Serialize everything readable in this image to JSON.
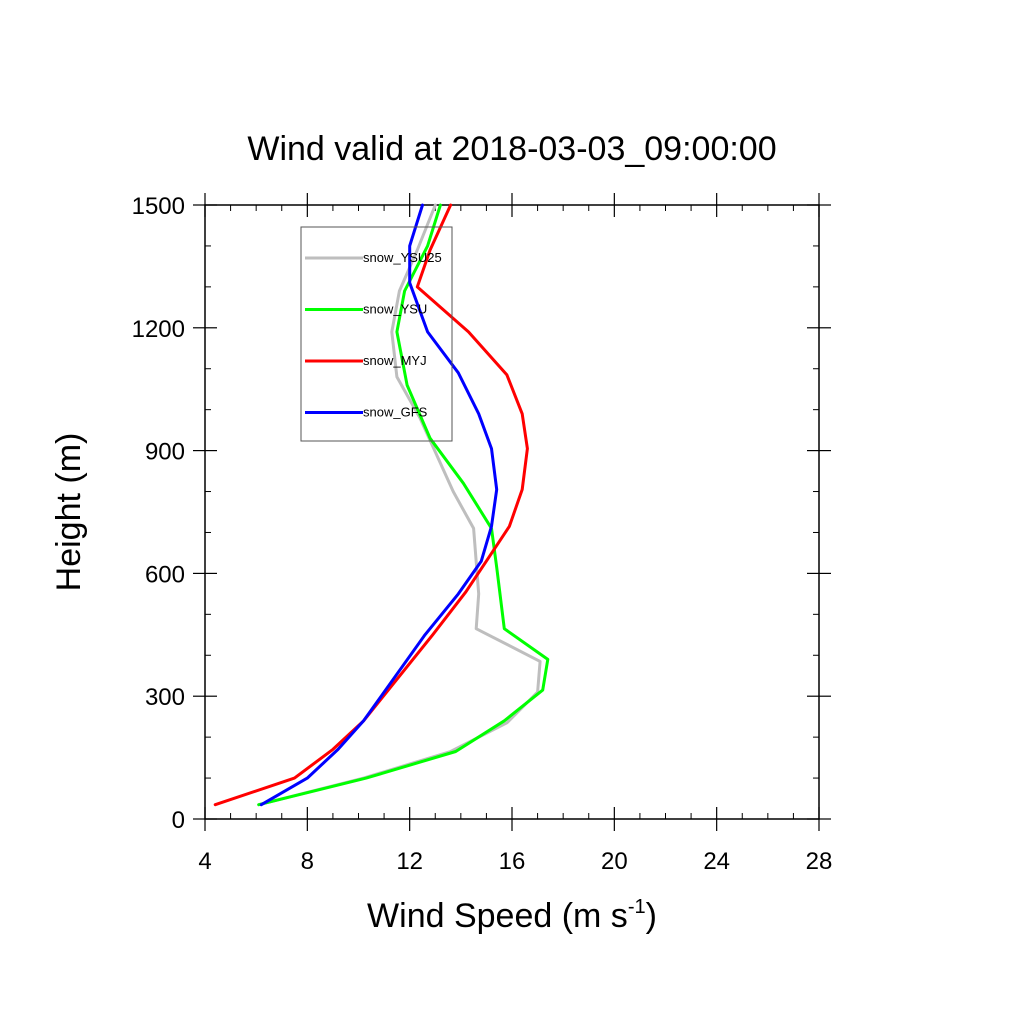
{
  "chart_data": {
    "type": "line",
    "title": "Wind valid at 2018-03-03_09:00:00",
    "xlabel": "Wind Speed (m s",
    "xlabel_sup": "-1",
    "xlabel_end": ")",
    "ylabel": "Height (m)",
    "xlim": [
      4,
      28
    ],
    "ylim": [
      0,
      1500
    ],
    "xticks": [
      "4",
      "8",
      "12",
      "16",
      "20",
      "24",
      "28"
    ],
    "yticks": [
      "0",
      "300",
      "600",
      "900",
      "1200",
      "1500"
    ],
    "grid": false,
    "legend_position": "top-left",
    "series": [
      {
        "name": "snow_YSU25",
        "color": "#bebebe",
        "points": [
          [
            6.1,
            35
          ],
          [
            10.2,
            100
          ],
          [
            13.6,
            165
          ],
          [
            15.8,
            235
          ],
          [
            17.0,
            310
          ],
          [
            17.1,
            385
          ],
          [
            14.6,
            465
          ],
          [
            14.7,
            550
          ],
          [
            14.5,
            710
          ],
          [
            13.7,
            800
          ],
          [
            12.4,
            980
          ],
          [
            11.5,
            1080
          ],
          [
            11.3,
            1190
          ],
          [
            11.6,
            1290
          ],
          [
            12.3,
            1390
          ],
          [
            13.0,
            1500
          ]
        ]
      },
      {
        "name": "snow_YSU",
        "color": "#00ff00",
        "points": [
          [
            6.1,
            35
          ],
          [
            10.3,
            100
          ],
          [
            13.8,
            165
          ],
          [
            15.7,
            240
          ],
          [
            17.2,
            315
          ],
          [
            17.4,
            390
          ],
          [
            15.7,
            465
          ],
          [
            15.4,
            615
          ],
          [
            15.2,
            710
          ],
          [
            14.1,
            820
          ],
          [
            12.8,
            930
          ],
          [
            11.9,
            1060
          ],
          [
            11.5,
            1190
          ],
          [
            11.8,
            1290
          ],
          [
            12.7,
            1400
          ],
          [
            13.2,
            1500
          ]
        ]
      },
      {
        "name": "snow_MYJ",
        "color": "#ff0000",
        "points": [
          [
            4.4,
            35
          ],
          [
            7.5,
            100
          ],
          [
            9.0,
            170
          ],
          [
            10.2,
            240
          ],
          [
            12.9,
            450
          ],
          [
            14.2,
            555
          ],
          [
            15.0,
            630
          ],
          [
            15.9,
            715
          ],
          [
            16.4,
            805
          ],
          [
            16.6,
            905
          ],
          [
            16.4,
            990
          ],
          [
            15.8,
            1085
          ],
          [
            14.3,
            1190
          ],
          [
            12.3,
            1300
          ],
          [
            12.8,
            1390
          ],
          [
            13.6,
            1500
          ]
        ]
      },
      {
        "name": "snow_GFS",
        "color": "#0000ff",
        "points": [
          [
            6.2,
            35
          ],
          [
            8.0,
            100
          ],
          [
            9.2,
            170
          ],
          [
            10.2,
            240
          ],
          [
            12.6,
            450
          ],
          [
            13.9,
            550
          ],
          [
            14.8,
            630
          ],
          [
            15.2,
            715
          ],
          [
            15.4,
            805
          ],
          [
            15.2,
            905
          ],
          [
            14.7,
            990
          ],
          [
            13.9,
            1090
          ],
          [
            12.7,
            1190
          ],
          [
            12.0,
            1310
          ],
          [
            12.0,
            1400
          ],
          [
            12.5,
            1500
          ]
        ]
      }
    ]
  }
}
